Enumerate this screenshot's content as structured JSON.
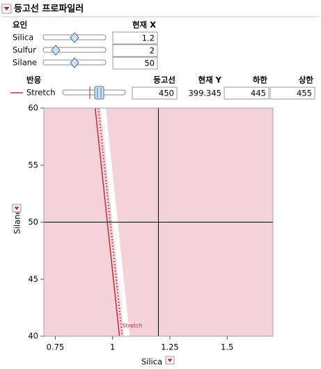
{
  "header": {
    "title": "등고선 프로파일러"
  },
  "factors": {
    "columns": [
      "요인",
      "현재 X"
    ],
    "rows": [
      {
        "name": "Silica",
        "value": 1.2
      },
      {
        "name": "Sulfur",
        "value": 2
      },
      {
        "name": "Silane",
        "value": 50
      }
    ]
  },
  "responses": {
    "columns": [
      "반응",
      "등고선",
      "현재 Y",
      "하한",
      "상한"
    ],
    "rows": [
      {
        "name": "Stretch",
        "contour": 450,
        "current_y": 399.345,
        "lower": 445,
        "upper": 455
      }
    ]
  },
  "chart_data": {
    "type": "contour",
    "x_label": "Silica",
    "y_label": "Silane",
    "xlim": [
      0.7,
      1.7
    ],
    "xticks": [
      0.75,
      1,
      1.25,
      1.5
    ],
    "ylim": [
      40,
      60
    ],
    "yticks": [
      40,
      45,
      50,
      55,
      60
    ],
    "background": "#f4d2d9",
    "band_color": "#ffffff",
    "band": {
      "x": [
        0.948,
        0.97,
        1.075,
        1.05
      ],
      "y": [
        60,
        60,
        40,
        40
      ]
    },
    "contours": [
      {
        "name": "Stretch",
        "color": "#b8303e",
        "x": [
          0.924,
          1.03
        ],
        "y": [
          60,
          40
        ]
      }
    ],
    "limit_lines": [
      {
        "color": "#b8303e",
        "x": [
          0.938,
          1.042
        ],
        "y": [
          60,
          40
        ]
      }
    ]
  }
}
